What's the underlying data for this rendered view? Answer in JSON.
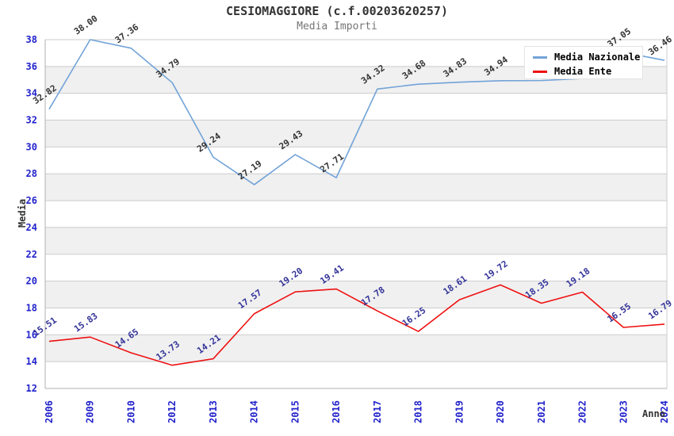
{
  "title": "CESIOMAGGIORE (c.f.00203620257)",
  "subtitle": "Media Importi",
  "axes": {
    "y_label": "Media",
    "x_label": "Anno"
  },
  "legend": {
    "items": [
      {
        "label": "Media Nazionale",
        "color": "#72a3d8"
      },
      {
        "label": "Media Ente",
        "color": "#ee1111"
      }
    ]
  },
  "colors": {
    "grid": "#cccccc",
    "axis": "#b0b0b0",
    "band": "#f0f0f0",
    "tick_label": "#2222cc",
    "title": "#333333",
    "subtitle": "#757575"
  },
  "chart_data": {
    "type": "line",
    "title": "CESIOMAGGIORE (c.f.00203620257)",
    "subtitle": "Media Importi",
    "xlabel": "Anno",
    "ylabel": "Media",
    "ylim": [
      12,
      38
    ],
    "ytick_step": 2,
    "grid": true,
    "legend_position": "top-right",
    "x": [
      2006,
      2009,
      2010,
      2012,
      2013,
      2014,
      2015,
      2016,
      2017,
      2018,
      2019,
      2020,
      2021,
      2022,
      2023,
      2024
    ],
    "series": [
      {
        "name": "Media Nazionale",
        "color": "#72a3d8",
        "label_color": "#333333",
        "values": [
          32.82,
          38.0,
          37.36,
          34.79,
          29.24,
          27.19,
          29.43,
          27.71,
          34.32,
          34.68,
          34.83,
          34.94,
          34.95,
          35.1,
          37.05,
          36.46
        ],
        "labels": [
          "32.82",
          "38.00",
          "37.36",
          "34.79",
          "29.24",
          "27.19",
          "29.43",
          "27.71",
          "34.32",
          "34.68",
          "34.83",
          "34.94",
          "",
          "",
          "37.05",
          "36.46"
        ]
      },
      {
        "name": "Media Ente",
        "color": "#ee1111",
        "label_color": "#333399",
        "values": [
          15.51,
          15.83,
          14.65,
          13.73,
          14.21,
          17.57,
          19.2,
          19.41,
          17.78,
          16.25,
          18.61,
          19.72,
          18.35,
          19.18,
          16.55,
          16.79
        ],
        "labels": [
          "15.51",
          "15.83",
          "14.65",
          "13.73",
          "14.21",
          "17.57",
          "19.20",
          "19.41",
          "17.78",
          "16.25",
          "18.61",
          "19.72",
          "18.35",
          "19.18",
          "16.55",
          "16.79"
        ]
      }
    ]
  }
}
